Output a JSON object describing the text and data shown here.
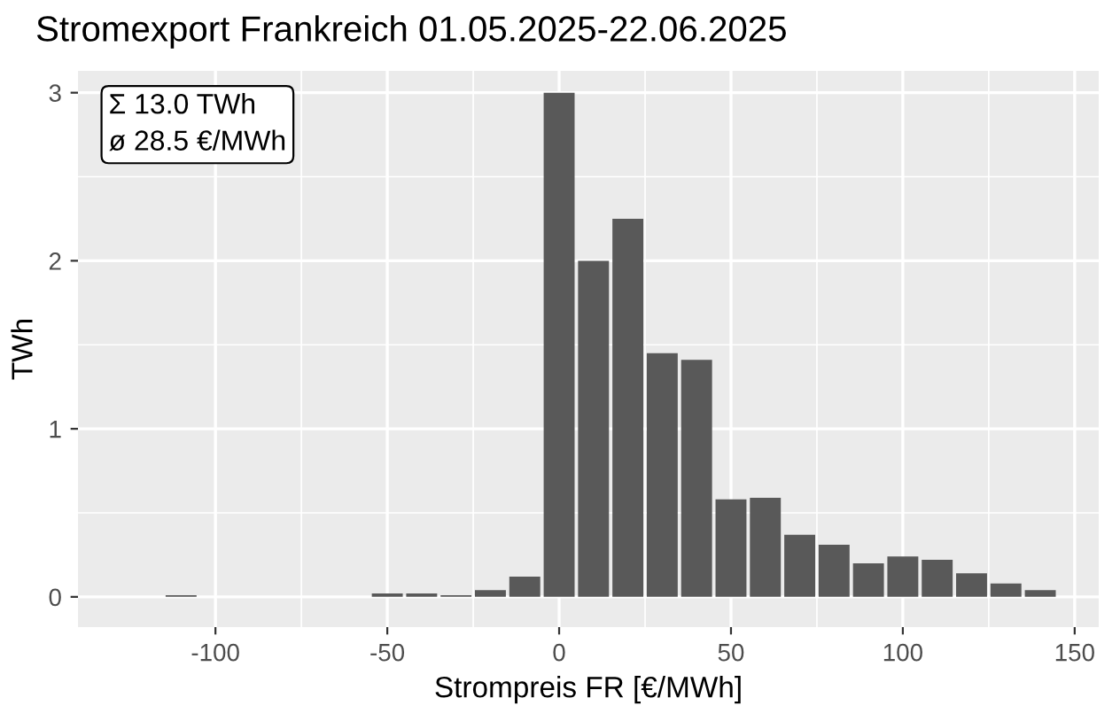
{
  "chart_data": {
    "type": "histogram",
    "title": "Stromexport Frankreich 01.05.2025-22.06.2025",
    "xlabel": "Strompreis FR [€/MWh]",
    "ylabel": "TWh",
    "annotations": [
      "Σ 13.0 TWh\nø 28.5 €/MWh"
    ],
    "bins": [
      -115,
      -105,
      -95,
      -85,
      -75,
      -65,
      -55,
      -45,
      -35,
      -25,
      -15,
      -5,
      5,
      15,
      25,
      35,
      45,
      55,
      65,
      75,
      85,
      95,
      105,
      115,
      125,
      135,
      145
    ],
    "values": [
      0.01,
      0,
      0,
      0,
      0,
      0,
      0.02,
      0.02,
      0.01,
      0.04,
      0.12,
      3.0,
      2.0,
      2.25,
      1.45,
      1.41,
      0.58,
      0.59,
      0.37,
      0.31,
      0.2,
      0.24,
      0.22,
      0.14,
      0.08,
      0.04
    ],
    "color": "#595959",
    "xlim": [
      -140,
      157
    ],
    "xticks": [
      -100,
      -50,
      0,
      50,
      100,
      150
    ],
    "ylim": [
      -0.18,
      3.13
    ],
    "yticks": [
      0,
      1,
      2,
      3
    ],
    "grid": true,
    "legend": false
  }
}
